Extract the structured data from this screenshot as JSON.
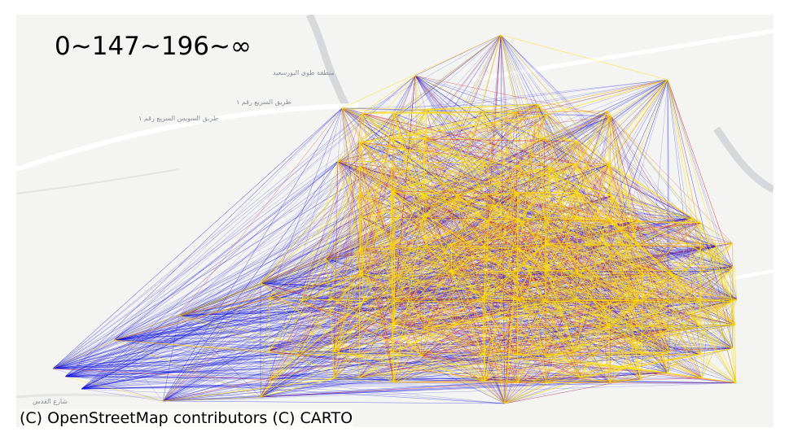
{
  "map": {
    "title": "0~147~196~∞",
    "attribution": "(C) OpenStreetMap contributors (C) CARTO",
    "basemap_labels": [
      "منطقة طوى البورسعيد",
      "طريق السريع رقم ١",
      "طريق السويس السريع رقم ١",
      "شارع القدس"
    ],
    "legend_colors": {
      "band_0_147": "#ffe000",
      "band_147_196": "#e0201a",
      "band_196_inf": "#1010e0"
    },
    "basemap_colors": {
      "land": "#f4f4f2",
      "water": "#d6d8dc",
      "roads": "#ffffff"
    }
  }
}
